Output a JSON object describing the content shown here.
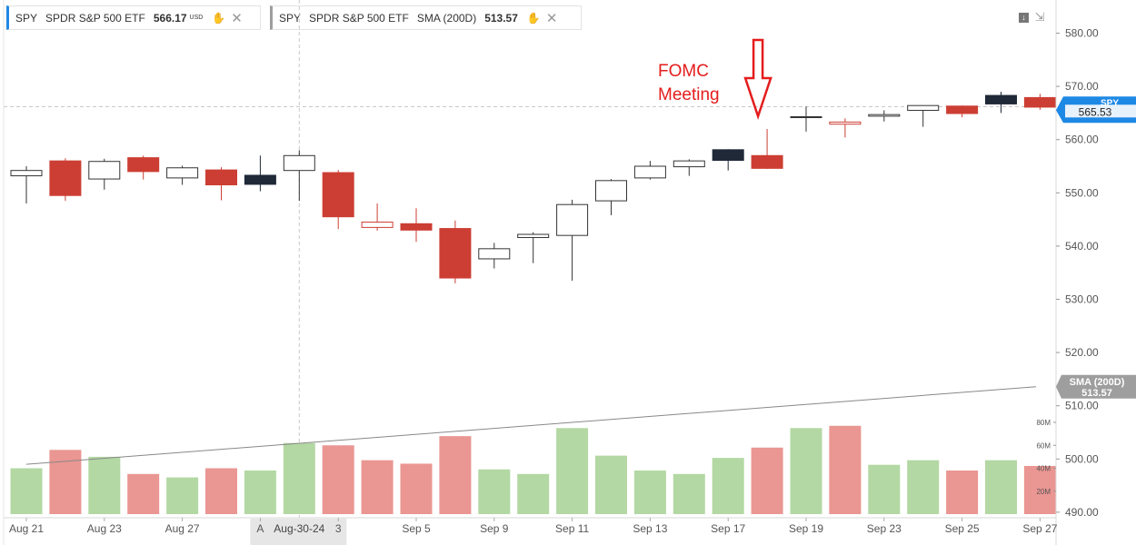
{
  "legend_spy": {
    "symbol": "SPY",
    "name": "SPDR S&P 500 ETF",
    "price": "566.17",
    "currency": "USD"
  },
  "legend_sma": {
    "symbol": "SPY",
    "name": "SPDR S&P 500 ETF",
    "indicator": "SMA (200D)",
    "value": "513.57"
  },
  "colors": {
    "up_outline": "#333333",
    "down_fill": "#cc3e33",
    "black_fill": "#1f2937",
    "vol_up": "#b3d8a3",
    "vol_down": "#ea9692",
    "price_tag": "#1e88e5",
    "sma_tag": "#9e9e9e",
    "annotation": "#e51c1c"
  },
  "chart_data": {
    "type": "candlestick",
    "ylim": [
      485,
      585
    ],
    "y_ticks": [
      "580.00",
      "570.00",
      "560.00",
      "550.00",
      "540.00",
      "530.00",
      "520.00",
      "510.00",
      "500.00",
      "490.00"
    ],
    "y_tick_values": [
      580,
      570,
      560,
      550,
      540,
      530,
      520,
      510,
      500,
      490
    ],
    "volume_ticks": [
      "80M",
      "60M",
      "40M",
      "20M"
    ],
    "volume_tick_values": [
      80,
      60,
      40,
      20
    ],
    "x_labels": [
      "Aug 21",
      "Aug 23",
      "Aug 27",
      "A",
      "3",
      "Sep 5",
      "Sep 9",
      "Sep 11",
      "Sep 13",
      "Sep 17",
      "Sep 19",
      "Sep 23",
      "Sep 25",
      "Sep 27"
    ],
    "x_label_index": [
      0,
      2,
      4,
      6,
      8,
      10,
      12,
      14,
      16,
      18,
      20,
      22,
      24,
      26
    ],
    "crosshair_label": "Aug-30-24",
    "crosshair_index": 7,
    "crosshair_price": 566.17,
    "candles": [
      {
        "o": 553.2,
        "h": 555.0,
        "l": 548.0,
        "c": 554.2,
        "v": 40,
        "t": "up"
      },
      {
        "o": 556.0,
        "h": 556.5,
        "l": 548.5,
        "c": 549.5,
        "v": 56,
        "t": "down"
      },
      {
        "o": 552.6,
        "h": 556.4,
        "l": 550.6,
        "c": 555.9,
        "v": 50,
        "t": "up"
      },
      {
        "o": 556.6,
        "h": 557.0,
        "l": 552.5,
        "c": 554.0,
        "v": 35,
        "t": "down"
      },
      {
        "o": 552.8,
        "h": 555.1,
        "l": 551.5,
        "c": 554.7,
        "v": 32,
        "t": "up"
      },
      {
        "o": 554.3,
        "h": 554.8,
        "l": 548.6,
        "c": 551.5,
        "v": 40,
        "t": "down"
      },
      {
        "o": 551.6,
        "h": 557.0,
        "l": 550.3,
        "c": 553.3,
        "v": 38,
        "t": "black"
      },
      {
        "o": 554.2,
        "h": 558.0,
        "l": 548.5,
        "c": 557.0,
        "v": 62,
        "t": "up"
      },
      {
        "o": 553.8,
        "h": 554.3,
        "l": 543.2,
        "c": 545.5,
        "v": 60,
        "t": "down"
      },
      {
        "o": 543.5,
        "h": 548.0,
        "l": 542.9,
        "c": 544.5,
        "v": 47,
        "t": "down-hollow"
      },
      {
        "o": 544.2,
        "h": 547.1,
        "l": 540.8,
        "c": 543.0,
        "v": 44,
        "t": "down"
      },
      {
        "o": 543.3,
        "h": 544.8,
        "l": 533.0,
        "c": 534.0,
        "v": 68,
        "t": "down"
      },
      {
        "o": 537.6,
        "h": 540.6,
        "l": 535.8,
        "c": 539.5,
        "v": 39,
        "t": "up"
      },
      {
        "o": 541.6,
        "h": 542.6,
        "l": 536.8,
        "c": 542.2,
        "v": 35,
        "t": "up"
      },
      {
        "o": 542.0,
        "h": 548.7,
        "l": 533.5,
        "c": 547.8,
        "v": 75,
        "t": "up"
      },
      {
        "o": 548.5,
        "h": 552.6,
        "l": 545.8,
        "c": 552.3,
        "v": 51,
        "t": "up"
      },
      {
        "o": 552.8,
        "h": 556.0,
        "l": 552.5,
        "c": 555.0,
        "v": 38,
        "t": "up"
      },
      {
        "o": 554.9,
        "h": 556.3,
        "l": 553.2,
        "c": 556.0,
        "v": 35,
        "t": "up"
      },
      {
        "o": 556.1,
        "h": 558.2,
        "l": 554.2,
        "c": 558.1,
        "v": 49,
        "t": "black"
      },
      {
        "o": 557.0,
        "h": 562.0,
        "l": 554.5,
        "c": 554.6,
        "v": 58,
        "t": "down"
      },
      {
        "o": 564.3,
        "h": 566.2,
        "l": 561.5,
        "c": 564.3,
        "v": 75,
        "t": "up"
      },
      {
        "o": 562.9,
        "h": 564.0,
        "l": 560.4,
        "c": 563.3,
        "v": 77,
        "t": "down-hollow"
      },
      {
        "o": 564.4,
        "h": 565.5,
        "l": 563.4,
        "c": 564.7,
        "v": 43,
        "t": "up"
      },
      {
        "o": 565.5,
        "h": 566.4,
        "l": 562.4,
        "c": 566.4,
        "v": 47,
        "t": "up"
      },
      {
        "o": 566.3,
        "h": 566.4,
        "l": 564.2,
        "c": 564.9,
        "v": 38,
        "t": "down"
      },
      {
        "o": 566.7,
        "h": 569.0,
        "l": 565.0,
        "c": 568.3,
        "v": 47,
        "t": "black"
      },
      {
        "o": 567.9,
        "h": 568.6,
        "l": 565.6,
        "c": 566.1,
        "v": 42,
        "t": "down"
      }
    ],
    "sma": {
      "name": "SMA (200D)",
      "start": 499.0,
      "end": 513.57
    },
    "annotation": {
      "text_line1": "FOMC",
      "text_line2": "Meeting",
      "index": 19
    },
    "price_tag": {
      "label": "SPY",
      "value": "565.53"
    },
    "sma_tag": {
      "label": "SMA (200D)",
      "value": "513.57"
    }
  }
}
